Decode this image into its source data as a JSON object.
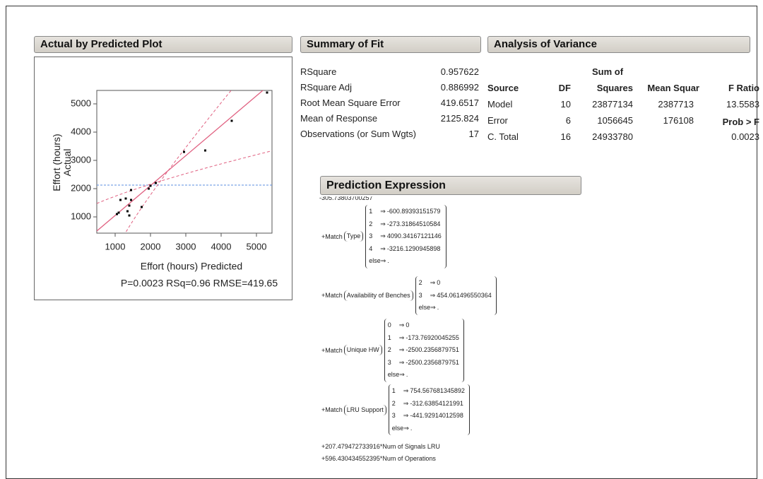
{
  "actual_by_predicted_plot": {
    "title": "Actual by Predicted Plot",
    "chart_data": {
      "type": "scatter",
      "x": [
        1050,
        1100,
        1150,
        1300,
        1350,
        1400,
        1450,
        1450,
        1750,
        1950,
        2000,
        2150,
        2950,
        3550,
        4300,
        5300,
        1400
      ],
      "values": [
        1100,
        1150,
        1600,
        1650,
        1200,
        1400,
        1600,
        1950,
        1350,
        2000,
        2100,
        2200,
        3300,
        3350,
        4400,
        5400,
        1050
      ],
      "color": "#000000",
      "x_label": "Effort (hours) Predicted",
      "y_label": "Effort (hours) Actual",
      "xlim": [
        480,
        5440
      ],
      "ylim": [
        425,
        5475
      ],
      "xticks": [
        1000,
        2000,
        3000,
        4000,
        5000
      ],
      "yticks": [
        1000,
        2000,
        3000,
        4000,
        5000
      ],
      "footer": "P=0.0023 RSq=0.96 RMSE=419.65"
    }
  },
  "summary_of_fit": {
    "title": "Summary of Fit",
    "rows": [
      {
        "label": "RSquare",
        "value": 0.957622
      },
      {
        "label": "RSquare Adj",
        "value": 0.886992
      },
      {
        "label": "Root Mean Square Error",
        "value": 419.6517
      },
      {
        "label": "Mean of Response",
        "value": 2125.824
      },
      {
        "label": "Observations (or Sum Wgts)",
        "value": 17
      }
    ]
  },
  "analysis_of_variance": {
    "title": "Analysis of Variance",
    "header_top": "Sum of",
    "columns": [
      "Source",
      "DF",
      "Squares",
      "Mean Squar",
      "F Ratio"
    ],
    "rows": [
      [
        "Model",
        10,
        23877134,
        2387713,
        13.5583
      ],
      [
        "Error",
        6,
        1056645,
        176108,
        "Prob > F"
      ],
      [
        "C. Total",
        16,
        24933780,
        null,
        0.0023
      ]
    ]
  },
  "prediction_expression": {
    "title": "Prediction Expression",
    "intercept": "-305.73803700257",
    "prefix": "+Match",
    "arrow": "⇒",
    "else_label": "else",
    "missing": ".",
    "matches": [
      {
        "variable": "Type",
        "cases": [
          {
            "level": 1,
            "value": -600.89393151579
          },
          {
            "level": 2,
            "value": -273.31864510584
          },
          {
            "level": 3,
            "value": 4090.34167121146
          },
          {
            "level": 4,
            "value": -3216.1290945898
          }
        ]
      },
      {
        "variable": "Availability of Benches",
        "cases": [
          {
            "level": 2,
            "value": 0
          },
          {
            "level": 3,
            "value": 454.061496550364
          }
        ]
      },
      {
        "variable": "Unique HW",
        "cases": [
          {
            "level": 0,
            "value": 0
          },
          {
            "level": 1,
            "value": -173.76920045255
          },
          {
            "level": 2,
            "value": -2500.2356879751
          },
          {
            "level": 3,
            "value": -2500.2356879751
          }
        ]
      },
      {
        "variable": "LRU Support",
        "cases": [
          {
            "level": 1,
            "value": 754.567681345892
          },
          {
            "level": 2,
            "value": -312.63854121991
          },
          {
            "level": 3,
            "value": -441.92914012598
          }
        ]
      }
    ],
    "terms": [
      "+207.479472733916*Num of Signals LRU",
      "+596.430434552395*Num of Operations"
    ]
  }
}
